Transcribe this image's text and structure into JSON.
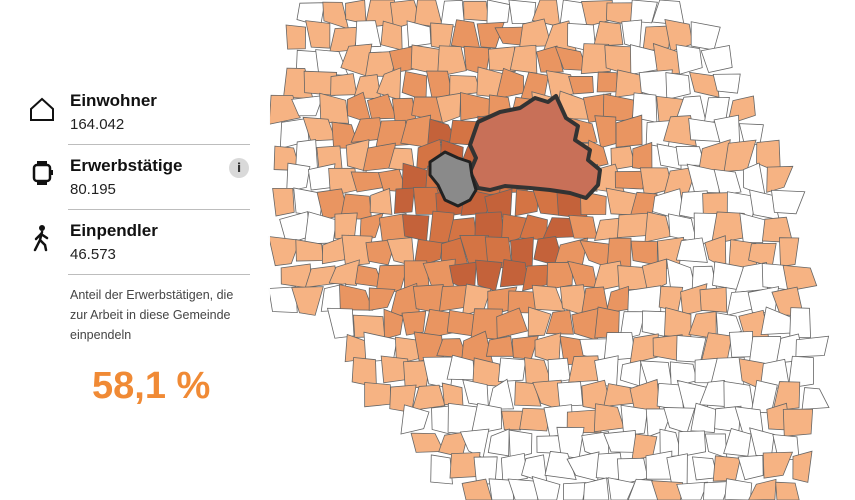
{
  "map": {
    "fill_colors": {
      "none": "#ffffff",
      "low": "#f6b383",
      "medium": "#e99561",
      "high": "#d47444",
      "highest": "#c4623a",
      "selected": "#8a8a8a",
      "berlin": "#c87058",
      "border": "#555555"
    }
  },
  "panel": {
    "residents": {
      "icon": "house-icon",
      "label": "Einwohner",
      "value": "164.042"
    },
    "employed": {
      "icon": "watch-icon",
      "label": "Erwerbstätige",
      "value": "80.195",
      "info": "i"
    },
    "commuters": {
      "icon": "walking-person-icon",
      "label": "Einpendler",
      "value": "46.573"
    },
    "description": "Anteil der Erwerbstätigen, die zur Arbeit in diese Gemeinde einpendeln",
    "percentage": "58,1 %",
    "accent": "#f08a35"
  }
}
